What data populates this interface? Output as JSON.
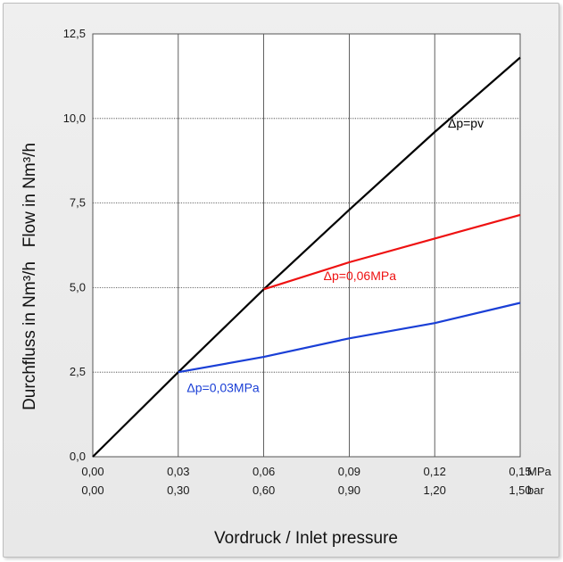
{
  "chart_data": {
    "type": "line",
    "title": "",
    "xlabel": "Vordruck / Inlet pressure",
    "ylabel": "Durchfluss in Nm³/h   Flow in Nm³/h",
    "xlim": [
      0,
      0.15
    ],
    "ylim": [
      0,
      12.5
    ],
    "x_unit_primary": "MPa",
    "x_unit_secondary": "bar",
    "x_ticks_primary": [
      "0,00",
      "0,03",
      "0,06",
      "0,09",
      "0,12",
      "0,15"
    ],
    "x_ticks_secondary": [
      "0,00",
      "0,30",
      "0,60",
      "0,90",
      "1,20",
      "1,50"
    ],
    "y_ticks": [
      "0,0",
      "2,5",
      "5,0",
      "7,5",
      "10,0",
      "12,5"
    ],
    "grid": true,
    "series": [
      {
        "name": "Δp=pv",
        "color": "#000000",
        "x": [
          0,
          0.03,
          0.06,
          0.09,
          0.12,
          0.15
        ],
        "y": [
          0,
          2.5,
          4.95,
          7.3,
          9.6,
          11.8
        ]
      },
      {
        "name": "Δp=0,06MPa",
        "color": "#ee1111",
        "x": [
          0.06,
          0.09,
          0.12,
          0.15
        ],
        "y": [
          4.95,
          5.75,
          6.45,
          7.15
        ]
      },
      {
        "name": "Δp=0,03MPa",
        "color": "#1a3fd6",
        "x": [
          0.03,
          0.06,
          0.09,
          0.12,
          0.15
        ],
        "y": [
          2.5,
          2.95,
          3.5,
          3.95,
          4.55
        ]
      }
    ]
  }
}
